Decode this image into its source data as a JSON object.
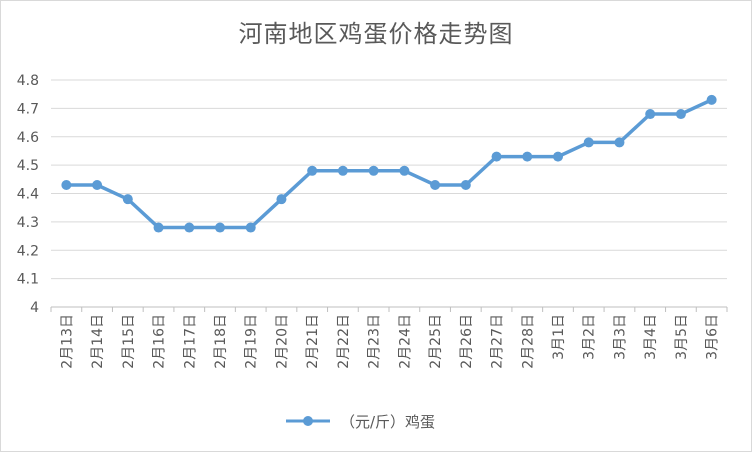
{
  "chart_data": {
    "type": "line",
    "title": "河南地区鸡蛋价格走势图",
    "categories": [
      "2月13日",
      "2月14日",
      "2月15日",
      "2月16日",
      "2月17日",
      "2月18日",
      "2月19日",
      "2月20日",
      "2月21日",
      "2月22日",
      "2月23日",
      "2月24日",
      "2月25日",
      "2月26日",
      "2月27日",
      "2月28日",
      "3月1日",
      "3月2日",
      "3月3日",
      "3月4日",
      "3月5日",
      "3月6日"
    ],
    "series": [
      {
        "name": "（元/斤）鸡蛋",
        "color": "#5b9bd5",
        "values": [
          4.43,
          4.43,
          4.38,
          4.28,
          4.28,
          4.28,
          4.28,
          4.38,
          4.48,
          4.48,
          4.48,
          4.48,
          4.43,
          4.43,
          4.53,
          4.53,
          4.53,
          4.58,
          4.58,
          4.68,
          4.68,
          4.73
        ]
      }
    ],
    "ylim": [
      4,
      4.8
    ],
    "yticks": [
      "4",
      "4.1",
      "4.2",
      "4.3",
      "4.4",
      "4.5",
      "4.6",
      "4.7",
      "4.8"
    ],
    "grid": true,
    "legend": "bottom"
  }
}
